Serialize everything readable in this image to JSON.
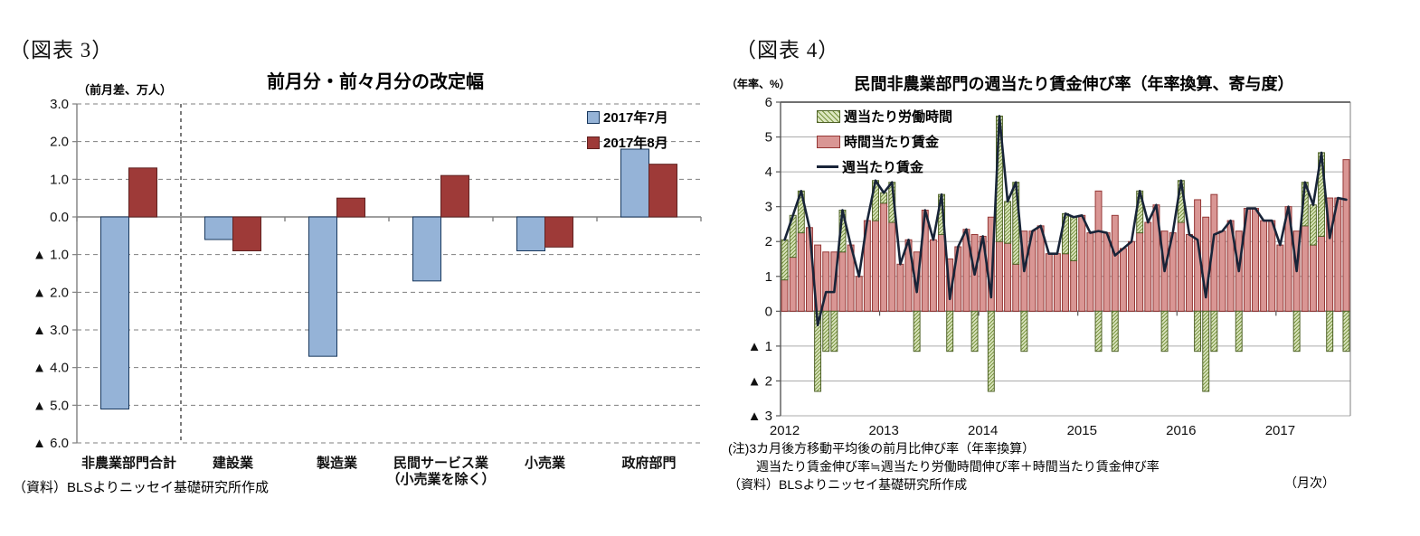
{
  "figure3": {
    "label": "（図表 3）",
    "source": "（資料）BLSよりニッセイ基礎研究所作成"
  },
  "figure4": {
    "label": "（図表 4）",
    "notes": [
      "(注)3カ月後方移動平均後の前月比伸び率（年率換算）",
      "週当たり賃金伸び率≒週当たり労働時間伸び率＋時間当たり賃金伸び率"
    ],
    "source": "（資料）BLSよりニッセイ基礎研究所作成",
    "freq_label": "（月次）"
  },
  "chart_data": [
    {
      "type": "bar",
      "title": "前月分・前々月分の改定幅",
      "unit_label": "（前月差、万人）",
      "categories": [
        "非農業部門合計",
        "建設業",
        "製造業",
        "民間サービス業\n（小売業を除く）",
        "小売業",
        "政府部門"
      ],
      "series": [
        {
          "name": "2017年7月",
          "color": "#95B3D7",
          "border": "#17375D",
          "values": [
            -5.1,
            -0.6,
            -3.7,
            -1.7,
            -0.9,
            1.8
          ]
        },
        {
          "name": "2017年8月",
          "color": "#9E3A38",
          "border": "#5F2120",
          "values": [
            1.3,
            -0.9,
            0.5,
            1.1,
            -0.8,
            1.4
          ]
        }
      ],
      "ylim": [
        -6,
        3
      ],
      "ytick_step": 1,
      "negative_prefix": "▲",
      "grid": "dashed",
      "separator_after_first_category": true,
      "legend_position": "top-right"
    },
    {
      "type": "stacked-bar-line",
      "title": "民間非農業部門の週当たり賃金伸び率（年率換算、寄与度）",
      "unit_label": "（年率、%）",
      "x_start": "2012-01",
      "x_end": "2017-09",
      "x_unit": "month",
      "year_labels": [
        "2012",
        "2013",
        "2014",
        "2015",
        "2016",
        "2017"
      ],
      "ylim": [
        -3,
        6
      ],
      "ytick_step": 1,
      "negative_prefix": "▲",
      "grid": "solid",
      "legend_position": "top-left",
      "series": [
        {
          "name": "週当たり労働時間",
          "style": "hatch",
          "fill": "#DCE6C1",
          "hatch_color": "#76923C",
          "border": "#4F6228",
          "values": [
            1.15,
            1.2,
            1.2,
            0,
            -2.3,
            -1.15,
            -1.15,
            1.2,
            0,
            0,
            0,
            1.15,
            0.3,
            1.15,
            0,
            0,
            -1.15,
            0,
            0,
            1.15,
            -1.15,
            0,
            0,
            -1.15,
            0,
            -2.3,
            3.6,
            1.2,
            2.35,
            -1.15,
            0,
            0,
            0,
            0,
            1.15,
            1.25,
            0,
            0,
            -1.15,
            0,
            -1.15,
            0,
            0,
            1.2,
            0,
            0,
            -1.15,
            0,
            1.2,
            0,
            -1.15,
            -2.3,
            -1.15,
            0,
            0,
            -1.15,
            0,
            0,
            0,
            0,
            0,
            0,
            -1.15,
            1.25,
            1.15,
            2.4,
            -1.15,
            0,
            -1.15
          ]
        },
        {
          "name": "時間当たり賃金",
          "style": "solid",
          "fill": "#D99694",
          "border": "#953735",
          "values": [
            0.9,
            1.55,
            2.25,
            2.4,
            1.9,
            1.7,
            1.7,
            1.7,
            1.9,
            1.0,
            2.6,
            2.6,
            3.1,
            2.55,
            1.35,
            2.05,
            1.7,
            2.9,
            2.05,
            2.2,
            1.5,
            1.85,
            2.35,
            2.2,
            2.15,
            2.7,
            2.0,
            1.95,
            1.35,
            2.3,
            2.3,
            2.45,
            1.65,
            1.65,
            1.65,
            1.45,
            2.75,
            2.25,
            3.45,
            2.25,
            2.75,
            1.8,
            2.0,
            2.25,
            2.55,
            3.05,
            2.3,
            2.25,
            2.55,
            2.2,
            3.2,
            2.7,
            3.35,
            2.3,
            2.6,
            2.3,
            2.95,
            2.95,
            2.6,
            2.6,
            1.9,
            3.0,
            2.3,
            2.45,
            1.9,
            2.15,
            3.25,
            3.25,
            4.35
          ]
        }
      ],
      "line": {
        "name": "週当たり賃金",
        "color": "#182438",
        "values": [
          2.05,
          2.75,
          3.45,
          2.4,
          -0.4,
          0.55,
          0.55,
          2.9,
          1.9,
          1.0,
          2.6,
          3.75,
          3.4,
          3.7,
          1.35,
          2.05,
          0.55,
          2.9,
          2.05,
          3.35,
          0.35,
          1.85,
          2.35,
          1.05,
          2.15,
          0.4,
          5.6,
          3.15,
          3.7,
          1.15,
          2.3,
          2.45,
          1.65,
          1.65,
          2.8,
          2.7,
          2.75,
          2.25,
          2.3,
          2.25,
          1.6,
          1.8,
          2.0,
          3.45,
          2.55,
          3.05,
          1.15,
          2.25,
          3.75,
          2.2,
          2.05,
          0.4,
          2.2,
          2.3,
          2.6,
          1.15,
          2.95,
          2.95,
          2.6,
          2.6,
          1.9,
          3.0,
          1.15,
          3.7,
          3.05,
          4.55,
          2.1,
          3.25,
          3.2
        ]
      }
    }
  ]
}
